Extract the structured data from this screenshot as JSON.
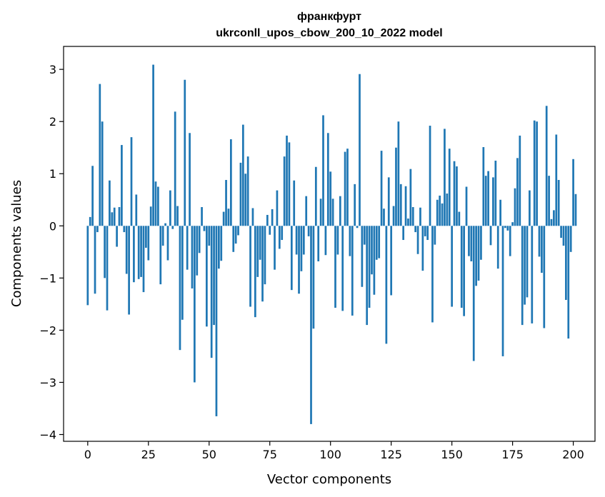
{
  "chart_data": {
    "type": "bar",
    "title": "франкфурт",
    "subtitle": "ukrconll_upos_cbow_200_10_2022 model",
    "xlabel": "Vector components",
    "ylabel": "Components values",
    "xlim": [
      -9.95,
      208.95
    ],
    "ylim": [
      -4.13,
      3.44
    ],
    "xticks": [
      0,
      25,
      50,
      75,
      100,
      125,
      150,
      175,
      200
    ],
    "yticks": [
      -4,
      -3,
      -2,
      -1,
      0,
      1,
      2,
      3
    ],
    "xtick_labels": [
      "0",
      "25",
      "50",
      "75",
      "100",
      "125",
      "150",
      "175",
      "200"
    ],
    "ytick_labels": [
      "−4",
      "−3",
      "−2",
      "−1",
      "0",
      "1",
      "2",
      "3"
    ],
    "bar_color": "#1f77b4",
    "grid": false,
    "legend": "none",
    "x_start": 0,
    "values": [
      -1.52,
      0.17,
      1.15,
      -1.3,
      -0.12,
      2.72,
      2.0,
      -1.0,
      -1.62,
      0.87,
      0.26,
      0.35,
      -0.4,
      0.36,
      1.55,
      -0.12,
      -0.92,
      -1.7,
      1.7,
      -1.08,
      0.6,
      -1.02,
      -0.98,
      -1.27,
      -0.42,
      -0.66,
      0.37,
      3.09,
      0.85,
      0.75,
      -1.12,
      -0.38,
      0.05,
      -0.66,
      0.68,
      -0.06,
      2.19,
      0.38,
      -2.38,
      -1.8,
      2.8,
      -0.84,
      1.78,
      -1.2,
      -3.0,
      -0.95,
      -0.52,
      0.36,
      -0.1,
      -1.93,
      -0.38,
      -2.53,
      -1.9,
      -3.65,
      -0.82,
      -0.67,
      0.27,
      0.88,
      0.33,
      1.66,
      -0.5,
      -0.34,
      -0.18,
      1.21,
      1.94,
      1.0,
      1.33,
      -1.55,
      0.34,
      -1.75,
      -0.98,
      -0.65,
      -1.45,
      -1.12,
      0.21,
      -0.17,
      0.32,
      -0.84,
      0.68,
      -0.44,
      -0.27,
      1.33,
      1.73,
      1.6,
      -1.23,
      0.87,
      -0.55,
      -1.3,
      -0.87,
      -0.55,
      0.57,
      -0.2,
      -3.8,
      -1.97,
      1.13,
      -0.68,
      0.52,
      2.12,
      -0.56,
      1.78,
      1.04,
      0.52,
      -1.57,
      -0.55,
      0.57,
      -1.63,
      1.42,
      1.48,
      -0.58,
      -1.72,
      0.8,
      -0.04,
      2.91,
      -1.17,
      -0.36,
      -1.9,
      -1.57,
      -0.93,
      -1.32,
      -0.65,
      -0.62,
      1.44,
      0.33,
      -2.26,
      0.93,
      -1.33,
      0.38,
      1.5,
      2.0,
      0.8,
      -0.27,
      0.76,
      0.14,
      1.09,
      0.36,
      -0.12,
      -0.54,
      0.35,
      -0.86,
      -0.2,
      -0.27,
      1.92,
      -1.85,
      -0.36,
      0.5,
      0.58,
      0.43,
      1.86,
      0.62,
      1.48,
      -1.55,
      1.24,
      1.14,
      0.27,
      -1.57,
      -1.73,
      0.75,
      -0.58,
      -0.68,
      -2.59,
      -1.15,
      -1.05,
      -0.65,
      1.51,
      0.96,
      1.05,
      -0.37,
      0.93,
      1.25,
      -0.82,
      0.5,
      -2.5,
      -0.04,
      -0.09,
      -0.58,
      0.07,
      0.72,
      1.3,
      1.73,
      -1.9,
      -1.51,
      -1.37,
      0.68,
      -1.87,
      2.02,
      2.0,
      -0.59,
      -0.9,
      -1.96,
      2.3,
      0.96,
      0.13,
      0.3,
      1.75,
      0.88,
      -0.23,
      -0.38,
      -1.42,
      -2.16,
      -0.5,
      1.28,
      0.61
    ]
  }
}
